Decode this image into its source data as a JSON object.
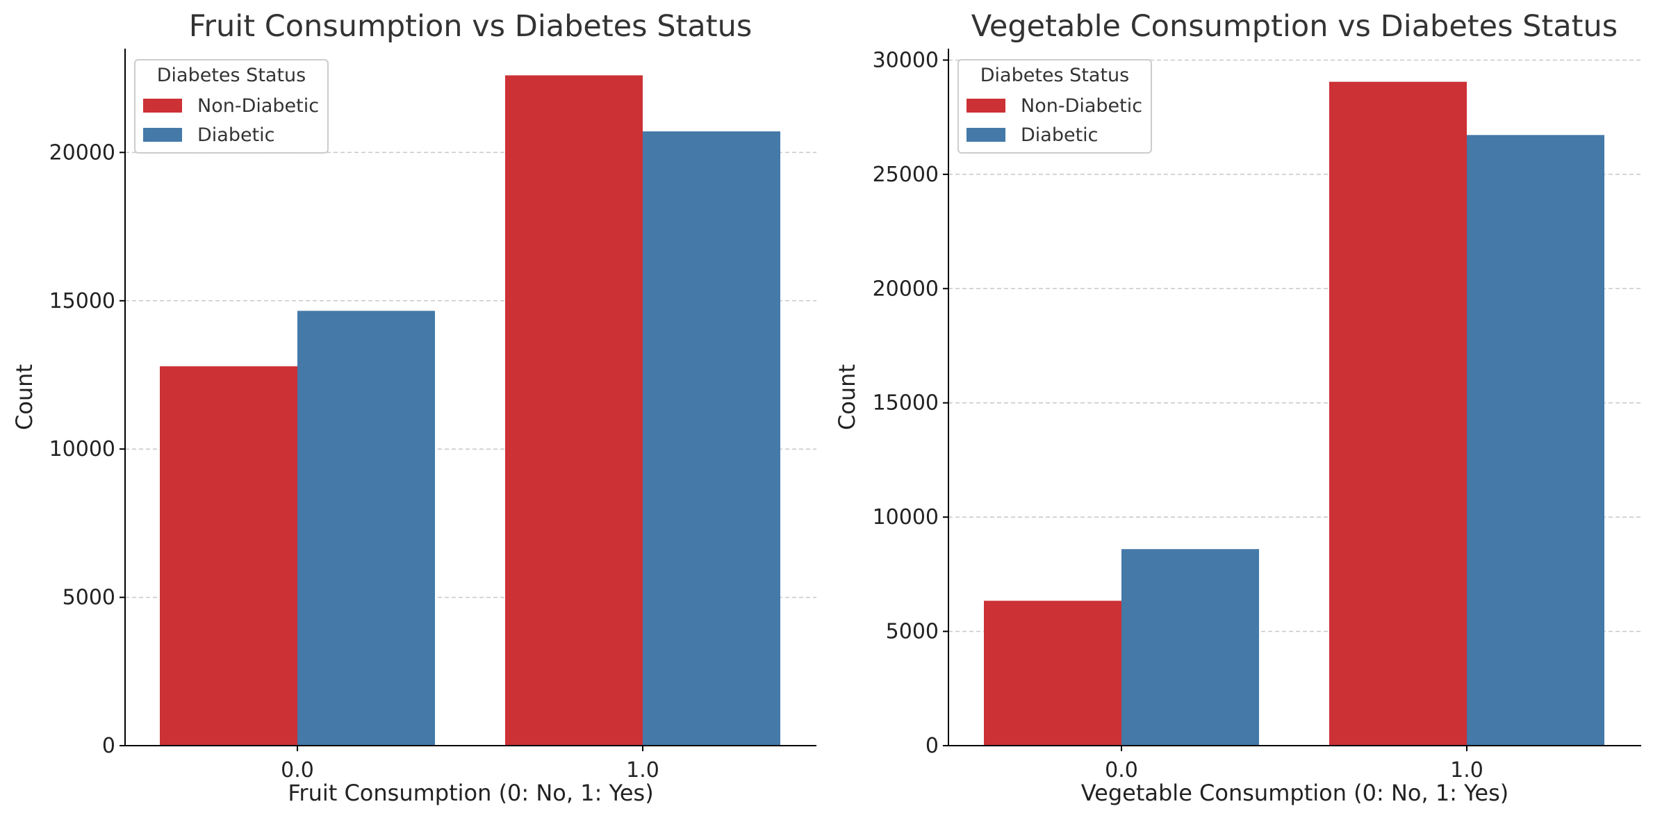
{
  "colors": {
    "non_diabetic": "#cc3135",
    "diabetic": "#4479a8",
    "grid": "#c8c8c8",
    "axis": "#000000"
  },
  "chart_data": [
    {
      "type": "bar",
      "title": "Fruit Consumption vs Diabetes Status",
      "xlabel": "Fruit Consumption (0: No, 1: Yes)",
      "ylabel": "Count",
      "categories": [
        "0.0",
        "1.0"
      ],
      "series": [
        {
          "name": "Non-Diabetic",
          "values": [
            12790,
            22600
          ]
        },
        {
          "name": "Diabetic",
          "values": [
            14660,
            20710
          ]
        }
      ],
      "ylim": [
        0,
        23500
      ],
      "yticks": [
        0,
        5000,
        10000,
        15000,
        20000
      ],
      "grid": "horizontal dashed",
      "legend": {
        "title": "Diabetes Status",
        "placement": "top-left"
      }
    },
    {
      "type": "bar",
      "title": "Vegetable Consumption vs Diabetes Status",
      "xlabel": "Vegetable Consumption (0: No, 1: Yes)",
      "ylabel": "Count",
      "categories": [
        "0.0",
        "1.0"
      ],
      "series": [
        {
          "name": "Non-Diabetic",
          "values": [
            6340,
            29050
          ]
        },
        {
          "name": "Diabetic",
          "values": [
            8600,
            26720
          ]
        }
      ],
      "ylim": [
        0,
        30500
      ],
      "yticks": [
        0,
        5000,
        10000,
        15000,
        20000,
        25000,
        30000
      ],
      "grid": "horizontal dashed",
      "legend": {
        "title": "Diabetes Status",
        "placement": "top-left"
      }
    }
  ]
}
